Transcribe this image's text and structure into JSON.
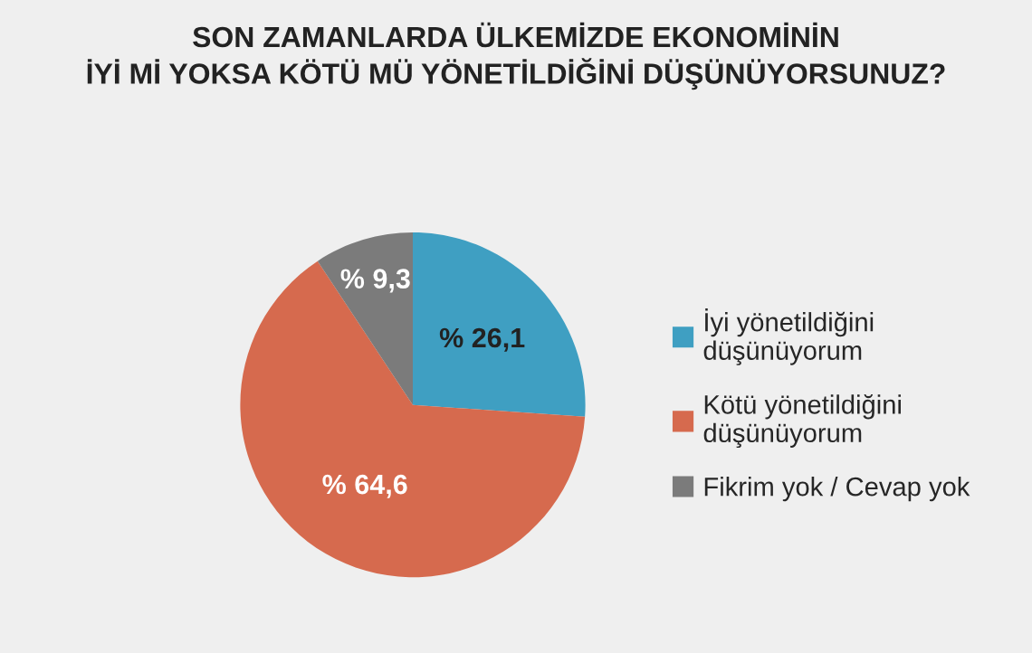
{
  "chart_data": {
    "type": "pie",
    "title": "SON ZAMANLARDA ÜLKEMİZDE EKONOMİNİN\nİYİ Mİ YOKSA KÖTÜ MÜ YÖNETİLDİĞİNİ DÜŞÜNÜYORSUNUZ?",
    "categories": [
      "İyi yönetildiğini\ndüşünüyorum",
      "Kötü yönetildiğini\ndüşünüyorum",
      "Fikrim yok / Cevap yok"
    ],
    "values": [
      26.1,
      64.6,
      9.3
    ],
    "colors": [
      "#3f9fc2",
      "#d66a4e",
      "#7b7b7b"
    ],
    "value_labels": [
      "% 26,1",
      "% 64,6",
      "% 9,3"
    ],
    "legend": "right"
  }
}
